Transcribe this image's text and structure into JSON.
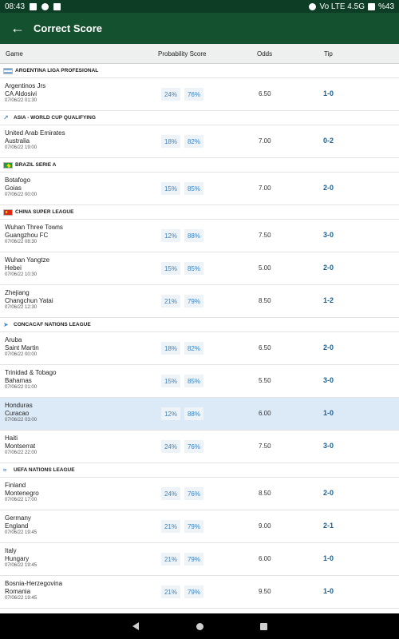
{
  "status_bar": {
    "time": "08:43",
    "network": "Vo LTE 4.5G",
    "battery": "%43"
  },
  "app_bar": {
    "title": "Correct Score"
  },
  "columns": {
    "game": "Game",
    "probability": "Probability Score",
    "odds": "Odds",
    "tip": "Tip"
  },
  "leagues": [
    {
      "name": "ARGENTINA LIGA PROFESIONAL",
      "flag_icon": "argentina-flag-icon",
      "matches": [
        {
          "home": "Argentinos Jrs",
          "away": "CA Aldosivi",
          "date": "07/06/22 01:30",
          "p1": "24%",
          "p2": "76%",
          "odds": "6.50",
          "tip": "1-0"
        }
      ]
    },
    {
      "name": "ASIA - WORLD CUP QUALIFYING",
      "flag_icon": "asia-icon",
      "matches": [
        {
          "home": "United Arab Emirates",
          "away": "Australia",
          "date": "07/06/22 19:00",
          "p1": "18%",
          "p2": "82%",
          "odds": "7.00",
          "tip": "0-2"
        }
      ]
    },
    {
      "name": "BRAZIL SERIE A",
      "flag_icon": "brazil-flag-icon",
      "matches": [
        {
          "home": "Botafogo",
          "away": "Goias",
          "date": "07/06/22 00:00",
          "p1": "15%",
          "p2": "85%",
          "odds": "7.00",
          "tip": "2-0"
        }
      ]
    },
    {
      "name": "CHINA SUPER LEAGUE",
      "flag_icon": "china-flag-icon",
      "matches": [
        {
          "home": "Wuhan Three Towns",
          "away": "Guangzhou FC",
          "date": "07/06/22 08:30",
          "p1": "12%",
          "p2": "88%",
          "odds": "7.50",
          "tip": "3-0"
        },
        {
          "home": "Wuhan Yangtze",
          "away": "Hebei",
          "date": "07/06/22 10:30",
          "p1": "15%",
          "p2": "85%",
          "odds": "5.00",
          "tip": "2-0"
        },
        {
          "home": "Zhejiang",
          "away": "Changchun Yatai",
          "date": "07/06/22 12:30",
          "p1": "21%",
          "p2": "79%",
          "odds": "8.50",
          "tip": "1-2"
        }
      ]
    },
    {
      "name": "CONCACAF NATIONS LEAGUE",
      "flag_icon": "concacaf-icon",
      "matches": [
        {
          "home": "Aruba",
          "away": "Saint Martin",
          "date": "07/06/22 00:00",
          "p1": "18%",
          "p2": "82%",
          "odds": "6.50",
          "tip": "2-0"
        },
        {
          "home": "Trinidad & Tobago",
          "away": "Bahamas",
          "date": "07/06/22 01:00",
          "p1": "15%",
          "p2": "85%",
          "odds": "5.50",
          "tip": "3-0"
        },
        {
          "home": "Honduras",
          "away": "Curacao",
          "date": "07/06/22 03:00",
          "p1": "12%",
          "p2": "88%",
          "odds": "6.00",
          "tip": "1-0",
          "highlighted": true
        },
        {
          "home": "Haiti",
          "away": "Montserrat",
          "date": "07/06/22 22:00",
          "p1": "24%",
          "p2": "76%",
          "odds": "7.50",
          "tip": "3-0"
        }
      ]
    },
    {
      "name": "UEFA NATIONS LEAGUE",
      "flag_icon": "uefa-icon",
      "matches": [
        {
          "home": "Finland",
          "away": "Montenegro",
          "date": "07/06/22 17:00",
          "p1": "24%",
          "p2": "76%",
          "odds": "8.50",
          "tip": "2-0"
        },
        {
          "home": "Germany",
          "away": "England",
          "date": "07/06/22 19:45",
          "p1": "21%",
          "p2": "79%",
          "odds": "9.00",
          "tip": "2-1"
        },
        {
          "home": "Italy",
          "away": "Hungary",
          "date": "07/06/22 19:45",
          "p1": "21%",
          "p2": "79%",
          "odds": "6.00",
          "tip": "1-0"
        },
        {
          "home": "Bosnia-Herzegovina",
          "away": "Romania",
          "date": "07/06/22 19:45",
          "p1": "21%",
          "p2": "79%",
          "odds": "9.50",
          "tip": "1-0"
        }
      ]
    }
  ]
}
